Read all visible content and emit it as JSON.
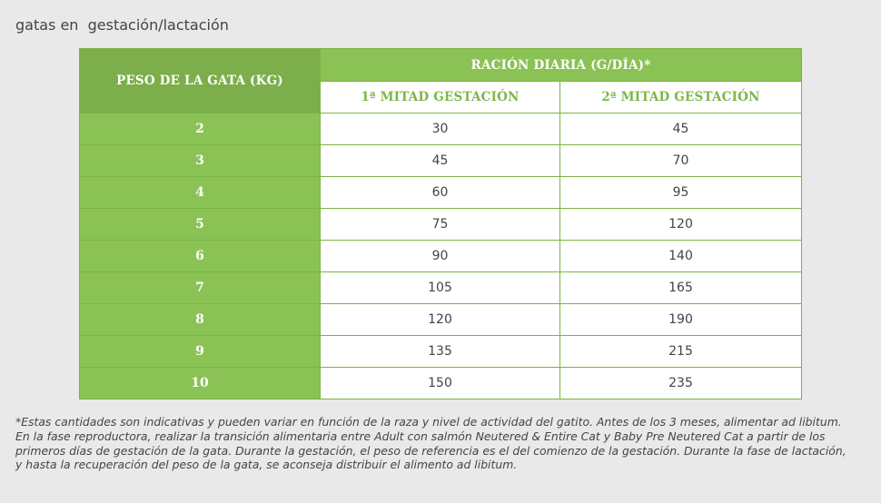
{
  "heading": "gatas en  gestación/lactación",
  "table": {
    "weight_header": "PESO DE LA GATA (KG)",
    "ration_header": "RACIÓN DIARIA (G/DÍA)*",
    "sub_headers": [
      "1ª MITAD GESTACIÓN",
      "2ª MITAD GESTACIÓN"
    ],
    "rows": [
      {
        "weight": "2",
        "first_half": "30",
        "second_half": "45"
      },
      {
        "weight": "3",
        "first_half": "45",
        "second_half": "70"
      },
      {
        "weight": "4",
        "first_half": "60",
        "second_half": "95"
      },
      {
        "weight": "5",
        "first_half": "75",
        "second_half": "120"
      },
      {
        "weight": "6",
        "first_half": "90",
        "second_half": "140"
      },
      {
        "weight": "7",
        "first_half": "105",
        "second_half": "165"
      },
      {
        "weight": "8",
        "first_half": "120",
        "second_half": "190"
      },
      {
        "weight": "9",
        "first_half": "135",
        "second_half": "215"
      },
      {
        "weight": "10",
        "first_half": "150",
        "second_half": "235"
      }
    ]
  },
  "footnotes": {
    "note1": "*Estas cantidades son indicativas y pueden variar en función de la raza y nivel de actividad del gatito. Antes de los 3 meses, alimentar ad libitum.",
    "note2": "En la fase reproductora, realizar la transición alimentaria entre Adult con salmón Neutered & Entire Cat y Baby Pre Neutered Cat a partir de los primeros días de gestación de la gata. Durante la gestación, el peso de referencia es el del comienzo de la gestación. Durante la fase de lactación, y hasta la recuperación del peso de la gata, se aconseja distribuir el alimento ad libitum."
  },
  "colors": {
    "header_dark_green": "#7cae4c",
    "header_green": "#8bc255",
    "subheader_text_green": "#7db649",
    "background": "#e9e9e9"
  }
}
